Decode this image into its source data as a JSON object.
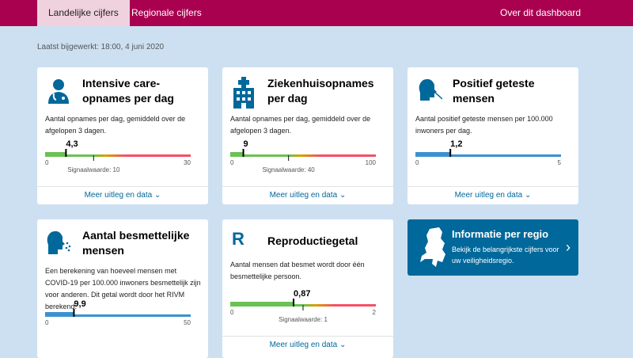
{
  "nav": {
    "tabs": [
      {
        "label": "Landelijke cijfers",
        "active": true
      },
      {
        "label": "Regionale cijfers",
        "active": false
      }
    ],
    "about": "Over dit dashboard"
  },
  "updated": "Laatst bijgewerkt: 18:00, 4 juni 2020",
  "more_label": "Meer uitleg en data",
  "colors": {
    "nav": "#a90050",
    "accent": "#01689b",
    "green": "#69c253",
    "red": "#f35065",
    "orange": "#d3a500"
  },
  "cards": [
    {
      "icon": "doctor-icon",
      "title": "Intensive care-opnames per dag",
      "desc": "Aantal opnames per dag, gemiddeld over de afgelopen 3 dagen.",
      "value": 4.3,
      "value_label": "4,3",
      "min": 0,
      "max": 30,
      "signal": 10,
      "signal_label": "Signaalwaarde: 10",
      "style": "gradient"
    },
    {
      "icon": "hospital-icon",
      "title": "Ziekenhuisopnames per dag",
      "desc": "Aantal opnames per dag, gemiddeld over de afgelopen 3 dagen.",
      "value": 9,
      "value_label": "9",
      "min": 0,
      "max": 100,
      "signal": 40,
      "signal_label": "Signaalwaarde: 40",
      "style": "gradient"
    },
    {
      "icon": "test-swab-icon",
      "title": "Positief geteste mensen",
      "desc": "Aantal positief geteste mensen per 100.000 inwoners per dag.",
      "value": 1.2,
      "value_label": "1,2",
      "min": 0,
      "max": 5,
      "style": "blue"
    },
    {
      "icon": "infectious-person-icon",
      "title": "Aantal besmettelijke mensen",
      "desc": "Een berekening van hoeveel mensen met COVID-19 per 100.000 inwoners besmettelijk zijn voor anderen. Dit getal wordt door het RIVM berekend.",
      "value": 9.9,
      "value_label": "9,9",
      "min": 0,
      "max": 50,
      "style": "blue"
    },
    {
      "icon": "r-letter-icon",
      "icon_text": "R",
      "title": "Reproductiegetal",
      "desc": "Aantal mensen dat besmet wordt door één besmettelijke persoon.",
      "value": 0.87,
      "value_label": "0,87",
      "min": 0,
      "max": 2,
      "signal": 1,
      "signal_label": "Signaalwaarde: 1",
      "style": "gradient"
    }
  ],
  "region": {
    "title": "Informatie per regio",
    "desc": "Bekijk de belangrijkste cijfers voor uw veiligheidsregio."
  }
}
